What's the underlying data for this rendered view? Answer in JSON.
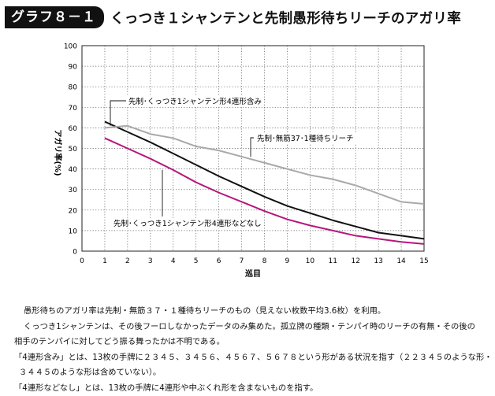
{
  "header": {
    "badge": "グラフ８－１",
    "title": "くっつき１シャンテンと先制愚形待ちリーチのアガリ率"
  },
  "chart_data": {
    "type": "line",
    "title": "くっつき１シャンテンと先制愚形待ちリーチのアガリ率",
    "xlabel": "巡目",
    "ylabel": "アガリ率(%)",
    "xlim": [
      0,
      15
    ],
    "ylim": [
      0,
      100
    ],
    "x_ticks": [
      0,
      1,
      2,
      3,
      4,
      5,
      6,
      7,
      8,
      9,
      10,
      11,
      12,
      13,
      14,
      15
    ],
    "y_ticks": [
      0,
      10,
      20,
      30,
      40,
      50,
      60,
      70,
      80,
      90,
      100
    ],
    "grid": true,
    "series": [
      {
        "name": "先制･くっつき1シャンテン形4連形含み",
        "color": "#111111",
        "x": [
          1,
          2,
          3,
          4,
          5,
          6,
          7,
          8,
          9,
          10,
          11,
          12,
          13,
          14,
          15
        ],
        "y": [
          63,
          58,
          53,
          47.5,
          42,
          36.5,
          31.5,
          26.5,
          22,
          18.5,
          15,
          12,
          9,
          7.5,
          6
        ]
      },
      {
        "name": "先制･無筋37･1種待ちリーチ",
        "color": "#a9a9a9",
        "x": [
          1,
          2,
          3,
          4,
          5,
          6,
          7,
          8,
          9,
          10,
          11,
          12,
          13,
          14,
          15
        ],
        "y": [
          60,
          61,
          57,
          55,
          51,
          49,
          46,
          43,
          40,
          37,
          35,
          32,
          28,
          24,
          23
        ]
      },
      {
        "name": "先制･くっつき1シャンテン形4連形などなし",
        "color": "#b5177d",
        "x": [
          1,
          2,
          3,
          4,
          5,
          6,
          7,
          8,
          9,
          10,
          11,
          12,
          13,
          14,
          15
        ],
        "y": [
          55,
          50,
          45,
          39.5,
          33.5,
          28.5,
          24,
          19.5,
          15.5,
          12.5,
          10,
          7.5,
          6,
          4.5,
          3.5
        ]
      }
    ]
  },
  "notes": [
    "愚形待ちのアガリ率は先制・無筋３７・１種待ちリーチのもの（見えない枚数平均3.6枚）を利用。",
    "くっつき1シャンテンは、その後フーロしなかったデータのみ集めた。孤立牌の種類・テンパイ時のリーチの有無・その後の",
    "相手のテンパイに対してどう振る舞ったかは不明である。",
    "「4連形含み」とは、13枚の手牌に２３４５、３４５６、４５６７、５６７８という形がある状況を指す（２２３４５のような形・",
    "３４４５のような形は含めていない）。",
    "「4連形などなし」とは、13枚の手牌に4連形や中ぶくれ形を含まないものを指す。"
  ]
}
